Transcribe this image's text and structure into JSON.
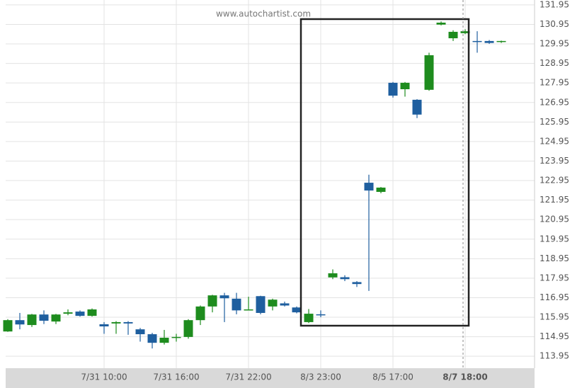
{
  "chart_data": {
    "type": "candlestick",
    "watermark": "www.autochartist.com",
    "categories": [
      null,
      null,
      null,
      null,
      null,
      null,
      null,
      null,
      "7/31 10:00",
      null,
      null,
      null,
      null,
      null,
      "7/31 16:00",
      null,
      null,
      null,
      null,
      null,
      "7/31 22:00",
      null,
      null,
      null,
      null,
      null,
      "8/3 23:00",
      null,
      null,
      null,
      null,
      null,
      "8/5 17:00",
      null,
      null,
      null,
      null,
      null,
      "8/7 18:00",
      null,
      null,
      null
    ],
    "open": [
      115.22,
      115.8,
      115.55,
      116.09,
      115.73,
      116.13,
      116.24,
      116.02,
      115.59,
      115.63,
      115.7,
      115.33,
      115.08,
      114.64,
      114.9,
      114.94,
      115.8,
      116.5,
      117.07,
      116.9,
      116.3,
      117.03,
      116.5,
      116.66,
      116.45,
      115.7,
      116.1,
      117.99,
      118.0,
      117.75,
      122.84,
      122.37,
      127.96,
      127.63,
      127.09,
      127.6,
      130.94,
      130.24,
      130.5,
      130.1,
      130.1,
      130.05
    ],
    "high": [
      115.85,
      116.17,
      116.12,
      116.3,
      116.12,
      116.35,
      116.3,
      116.4,
      115.7,
      115.75,
      115.75,
      115.4,
      115.15,
      115.3,
      115.1,
      115.85,
      116.55,
      117.1,
      117.2,
      117.2,
      117.0,
      117.05,
      116.9,
      116.75,
      116.5,
      116.37,
      116.3,
      118.4,
      118.1,
      117.8,
      123.25,
      122.62,
      128.0,
      128.0,
      127.12,
      129.5,
      131.1,
      130.65,
      130.7,
      130.6,
      130.15,
      130.12
    ],
    "low": [
      115.2,
      115.33,
      115.45,
      115.6,
      115.6,
      116.05,
      115.98,
      115.98,
      115.1,
      115.1,
      115.05,
      114.7,
      114.35,
      114.55,
      114.7,
      114.85,
      115.55,
      116.2,
      115.7,
      116.1,
      116.3,
      116.1,
      116.3,
      116.5,
      116.15,
      115.65,
      115.95,
      117.9,
      117.8,
      117.5,
      117.3,
      122.3,
      127.2,
      127.25,
      126.15,
      127.55,
      130.9,
      130.1,
      130.45,
      129.5,
      129.95,
      130.0
    ],
    "close": [
      115.8,
      115.58,
      116.09,
      115.77,
      116.09,
      116.2,
      116.02,
      116.35,
      115.48,
      115.7,
      115.63,
      115.08,
      114.64,
      114.9,
      114.94,
      115.8,
      116.5,
      117.07,
      116.92,
      116.3,
      116.35,
      116.17,
      116.85,
      116.55,
      116.2,
      116.13,
      116.06,
      118.2,
      117.9,
      117.65,
      122.44,
      122.59,
      127.3,
      127.96,
      126.33,
      129.37,
      131.04,
      130.57,
      130.6,
      130.08,
      130.0,
      130.1
    ],
    "up_color": "#1e8c1e",
    "down_color": "#1f5f9f",
    "ylim": [
      113.34,
      132.2
    ],
    "yticks": [
      113.95,
      114.95,
      115.95,
      116.95,
      117.95,
      118.95,
      119.95,
      120.95,
      121.95,
      122.95,
      123.95,
      124.95,
      125.95,
      126.95,
      127.95,
      128.95,
      129.95,
      130.95,
      131.95
    ],
    "grid": true
  }
}
